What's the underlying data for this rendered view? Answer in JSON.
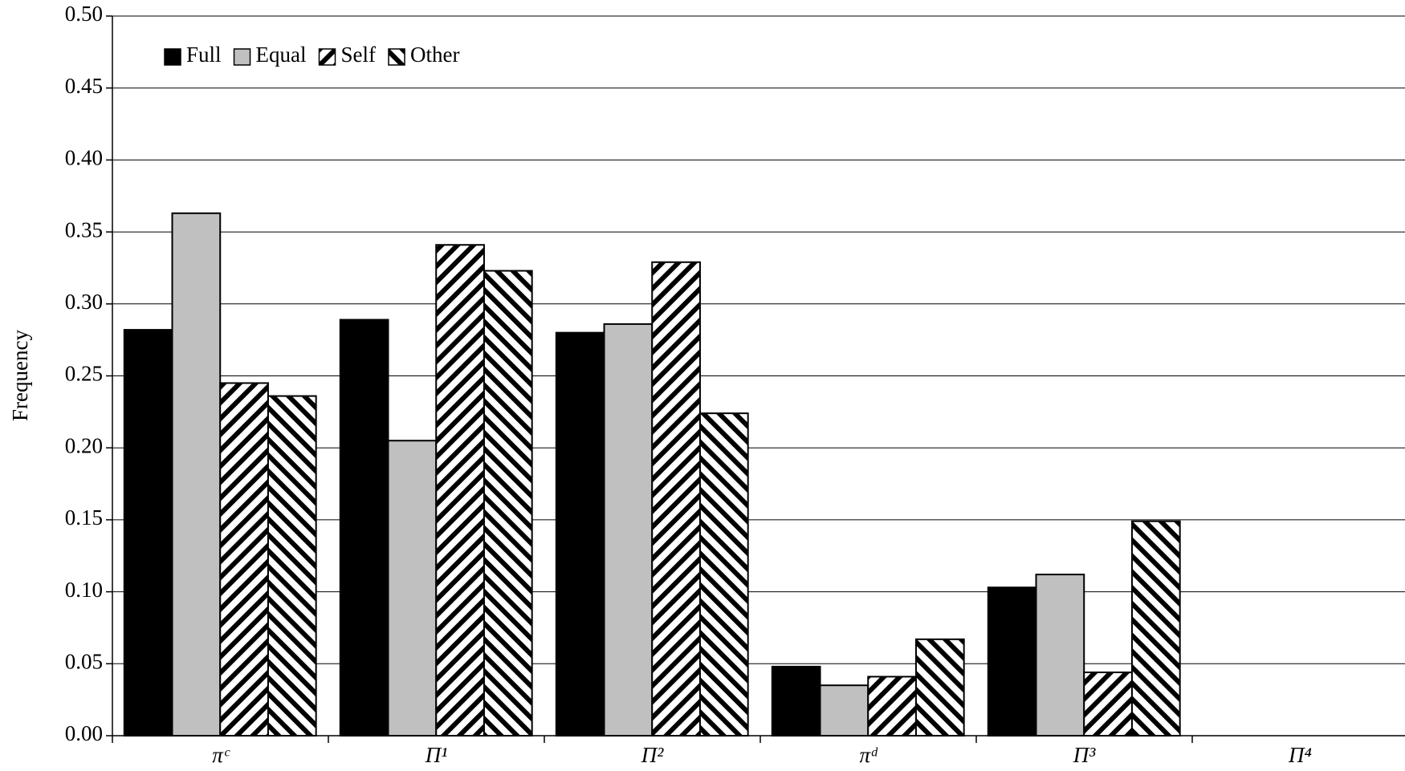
{
  "chart_data": {
    "type": "bar",
    "y_label": "Frequency",
    "categories": [
      "πᶜ",
      "Π¹",
      "Π²",
      "πᵈ",
      "Π³",
      "Π⁴"
    ],
    "series": [
      {
        "name": "Full",
        "color": "#000000",
        "values": [
          0.282,
          0.289,
          0.28,
          0.048,
          0.103,
          0
        ]
      },
      {
        "name": "Equal",
        "color": "#c0c0c0",
        "values": [
          0.363,
          0.205,
          0.286,
          0.035,
          0.112,
          0
        ]
      },
      {
        "name": "Self",
        "color": "#000000",
        "pattern": "diagonal-up",
        "values": [
          0.245,
          0.341,
          0.329,
          0.041,
          0.044,
          0
        ]
      },
      {
        "name": "Other",
        "color": "#000000",
        "pattern": "diagonal-down",
        "values": [
          0.236,
          0.323,
          0.224,
          0.067,
          0.149,
          0
        ]
      }
    ],
    "ylim": [
      0,
      0.5
    ],
    "yticks": [
      {
        "value": 0,
        "label": "0.00"
      },
      {
        "value": 0.05,
        "label": "0.05"
      },
      {
        "value": 0.1,
        "label": "0.10"
      },
      {
        "value": 0.15,
        "label": "0.15"
      },
      {
        "value": 0.2,
        "label": "0.20"
      },
      {
        "value": 0.25,
        "label": "0.25"
      },
      {
        "value": 0.3,
        "label": "0.30"
      },
      {
        "value": 0.35,
        "label": "0.35"
      },
      {
        "value": 0.4,
        "label": "0.40"
      },
      {
        "value": 0.45,
        "label": "0.45"
      },
      {
        "value": 0.5,
        "label": "0.50"
      }
    ],
    "grid": true,
    "legend": "top-left"
  }
}
